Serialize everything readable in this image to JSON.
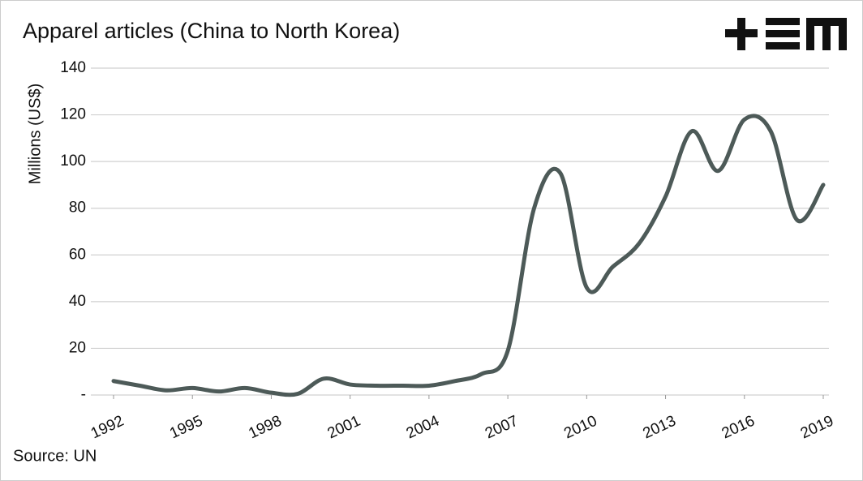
{
  "chart_data": {
    "type": "line",
    "title": "Apparel articles (China to North Korea)",
    "y_label": "Millions (US$)",
    "source": "Source: UN",
    "x": [
      1992,
      1993,
      1994,
      1995,
      1996,
      1997,
      1998,
      1999,
      2000,
      2001,
      2002,
      2003,
      2004,
      2005,
      2006,
      2007,
      2008,
      2009,
      2010,
      2011,
      2012,
      2013,
      2014,
      2015,
      2016,
      2017,
      2018,
      2019
    ],
    "series": [
      {
        "name": "Apparel articles",
        "color": "#4d5a58",
        "values": [
          6,
          4,
          2,
          3,
          1.5,
          3,
          1,
          0.5,
          7,
          4.5,
          4,
          4,
          4,
          6,
          9,
          19,
          80,
          95,
          46,
          55,
          65,
          85,
          113,
          96,
          118,
          113,
          75,
          90
        ]
      }
    ],
    "xlim": [
      1992,
      2019
    ],
    "xticks": [
      1992,
      1995,
      1998,
      2001,
      2004,
      2007,
      2010,
      2013,
      2016,
      2019
    ],
    "ylim": [
      0,
      140
    ],
    "yticks": [
      {
        "value": 0,
        "label": "-"
      },
      20,
      40,
      60,
      80,
      100,
      120,
      140
    ],
    "grid": true
  }
}
